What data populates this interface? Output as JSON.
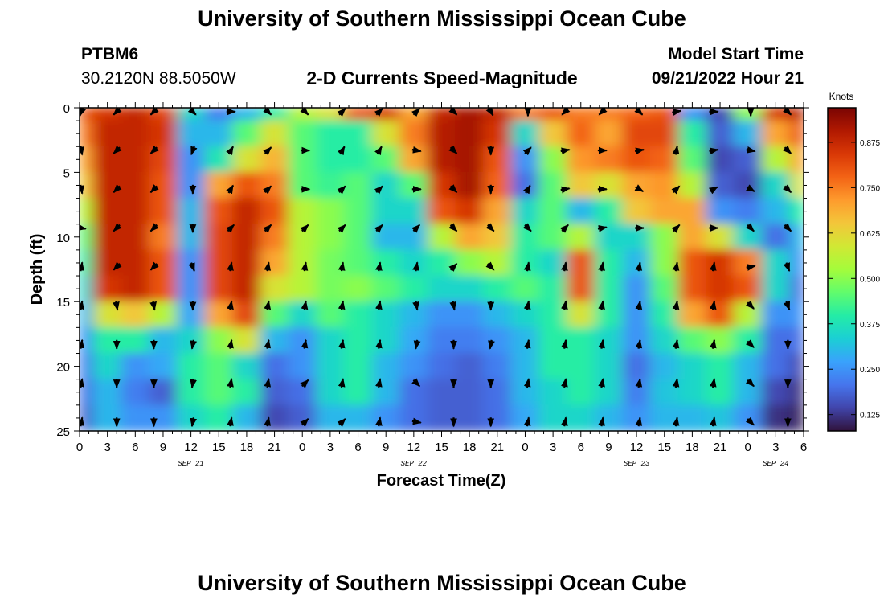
{
  "header": {
    "title": "University of Southern Mississippi Ocean Cube",
    "station_id": "PTBM6",
    "station_coords": "30.2120N  88.5050W",
    "plot_title": "2-D Currents Speed-Magnitude",
    "model_start_label": "Model Start Time",
    "model_start_value": "09/21/2022 Hour 21"
  },
  "footer": {
    "repeat_title": "University of Southern Mississippi Ocean Cube"
  },
  "chart_data": {
    "type": "heatmap",
    "title": "2-D Currents Speed-Magnitude",
    "xlabel": "Forecast Time(Z)",
    "ylabel": "Depth (ft)",
    "x_tick_labels": [
      "0",
      "3",
      "6",
      "9",
      "12",
      "15",
      "18",
      "21",
      "0",
      "3",
      "6",
      "9",
      "12",
      "15",
      "18",
      "21",
      "0",
      "3",
      "6",
      "9",
      "12",
      "15",
      "18",
      "21",
      "0",
      "3",
      "6"
    ],
    "date_labels": [
      {
        "label": "SEP 21",
        "tick_index": 4
      },
      {
        "label": "SEP 22",
        "tick_index": 12
      },
      {
        "label": "SEP 23",
        "tick_index": 20
      },
      {
        "label": "SEP 24",
        "tick_index": 25
      }
    ],
    "y_ticks": [
      0,
      5,
      10,
      15,
      20,
      25
    ],
    "ylim": [
      0,
      25
    ],
    "x_range_hours": [
      0,
      78
    ],
    "colorbar": {
      "unit_label": "Knots",
      "range": [
        0.08,
        0.97
      ],
      "ticks": [
        "0.125",
        "0.250",
        "0.375",
        "0.500",
        "0.625",
        "0.750",
        "0.875"
      ],
      "colors": [
        "#30123b",
        "#4145ab",
        "#4675ed",
        "#39a2fc",
        "#1bcfd4",
        "#24eca6",
        "#61fc6c",
        "#a4fc3b",
        "#d1e834",
        "#f3c63a",
        "#fe9b2d",
        "#f36315",
        "#d93806",
        "#b11901",
        "#7a0403"
      ]
    },
    "speed_grid_depths_ft": [
      0,
      2,
      4,
      6,
      8,
      10,
      12,
      14,
      16,
      18,
      20,
      22,
      24
    ],
    "speed_grid_hours": [
      0,
      3,
      6,
      9,
      12,
      15,
      18,
      21,
      24,
      27,
      30,
      33,
      36,
      39,
      42,
      45,
      48,
      51,
      54,
      57,
      60,
      63,
      66,
      69,
      72,
      75,
      78
    ],
    "speed_knots": [
      [
        0.8,
        0.85,
        0.88,
        0.82,
        0.35,
        0.22,
        0.3,
        0.4,
        0.55,
        0.6,
        0.8,
        0.85,
        0.7,
        0.88,
        0.92,
        0.88,
        0.75,
        0.8,
        0.75,
        0.75,
        0.78,
        0.8,
        0.25,
        0.15,
        0.5,
        0.85,
        0.9
      ],
      [
        0.75,
        0.88,
        0.88,
        0.85,
        0.3,
        0.3,
        0.45,
        0.6,
        0.45,
        0.4,
        0.4,
        0.6,
        0.75,
        0.9,
        0.92,
        0.85,
        0.35,
        0.65,
        0.78,
        0.7,
        0.82,
        0.82,
        0.4,
        0.18,
        0.3,
        0.7,
        0.8
      ],
      [
        0.7,
        0.88,
        0.88,
        0.82,
        0.25,
        0.38,
        0.6,
        0.68,
        0.45,
        0.4,
        0.4,
        0.45,
        0.7,
        0.9,
        0.92,
        0.8,
        0.25,
        0.5,
        0.72,
        0.75,
        0.8,
        0.78,
        0.45,
        0.15,
        0.18,
        0.55,
        0.7
      ],
      [
        0.65,
        0.88,
        0.88,
        0.8,
        0.25,
        0.7,
        0.8,
        0.75,
        0.45,
        0.42,
        0.45,
        0.35,
        0.45,
        0.85,
        0.92,
        0.78,
        0.2,
        0.45,
        0.65,
        0.6,
        0.7,
        0.72,
        0.55,
        0.18,
        0.15,
        0.35,
        0.6
      ],
      [
        0.55,
        0.88,
        0.88,
        0.8,
        0.3,
        0.8,
        0.88,
        0.8,
        0.55,
        0.5,
        0.45,
        0.35,
        0.35,
        0.8,
        0.85,
        0.7,
        0.35,
        0.45,
        0.3,
        0.4,
        0.65,
        0.7,
        0.7,
        0.25,
        0.22,
        0.3,
        0.4
      ],
      [
        0.45,
        0.88,
        0.88,
        0.75,
        0.3,
        0.82,
        0.88,
        0.75,
        0.55,
        0.5,
        0.45,
        0.3,
        0.3,
        0.55,
        0.7,
        0.65,
        0.4,
        0.45,
        0.55,
        0.35,
        0.35,
        0.5,
        0.7,
        0.6,
        0.35,
        0.2,
        0.3
      ],
      [
        0.4,
        0.88,
        0.88,
        0.8,
        0.25,
        0.82,
        0.88,
        0.7,
        0.55,
        0.48,
        0.45,
        0.4,
        0.35,
        0.4,
        0.5,
        0.55,
        0.4,
        0.35,
        0.8,
        0.4,
        0.3,
        0.5,
        0.8,
        0.85,
        0.75,
        0.35,
        0.25
      ],
      [
        0.35,
        0.85,
        0.88,
        0.8,
        0.25,
        0.82,
        0.88,
        0.6,
        0.55,
        0.48,
        0.5,
        0.45,
        0.4,
        0.35,
        0.35,
        0.4,
        0.45,
        0.4,
        0.8,
        0.4,
        0.25,
        0.45,
        0.8,
        0.85,
        0.8,
        0.35,
        0.2
      ],
      [
        0.3,
        0.6,
        0.65,
        0.55,
        0.28,
        0.7,
        0.82,
        0.45,
        0.35,
        0.45,
        0.4,
        0.35,
        0.3,
        0.25,
        0.25,
        0.3,
        0.35,
        0.4,
        0.6,
        0.4,
        0.25,
        0.4,
        0.7,
        0.8,
        0.55,
        0.25,
        0.25
      ],
      [
        0.25,
        0.4,
        0.4,
        0.3,
        0.35,
        0.5,
        0.6,
        0.3,
        0.25,
        0.35,
        0.4,
        0.35,
        0.28,
        0.22,
        0.22,
        0.25,
        0.3,
        0.4,
        0.4,
        0.35,
        0.25,
        0.35,
        0.45,
        0.5,
        0.4,
        0.2,
        0.2
      ],
      [
        0.22,
        0.35,
        0.25,
        0.28,
        0.4,
        0.45,
        0.35,
        0.2,
        0.25,
        0.35,
        0.4,
        0.3,
        0.25,
        0.2,
        0.18,
        0.22,
        0.3,
        0.4,
        0.4,
        0.35,
        0.2,
        0.3,
        0.35,
        0.4,
        0.3,
        0.2,
        0.15
      ],
      [
        0.2,
        0.3,
        0.22,
        0.18,
        0.4,
        0.45,
        0.4,
        0.18,
        0.2,
        0.35,
        0.4,
        0.3,
        0.2,
        0.18,
        0.18,
        0.2,
        0.3,
        0.35,
        0.4,
        0.35,
        0.22,
        0.32,
        0.35,
        0.4,
        0.3,
        0.15,
        0.12
      ],
      [
        0.18,
        0.3,
        0.25,
        0.25,
        0.35,
        0.4,
        0.3,
        0.15,
        0.18,
        0.3,
        0.3,
        0.25,
        0.2,
        0.18,
        0.18,
        0.2,
        0.28,
        0.35,
        0.35,
        0.3,
        0.25,
        0.3,
        0.3,
        0.32,
        0.25,
        0.12,
        0.1
      ]
    ],
    "arrow_rows_depth_ft": [
      0.3,
      3.3,
      6.3,
      9.3,
      12.3,
      15.3,
      18.3,
      21.3,
      24.3
    ],
    "arrow_cols_hour": [
      0.2,
      4,
      8,
      12.2,
      16.3,
      20.3,
      24.3,
      28.3,
      32.3,
      36.3,
      40.3,
      44.3,
      48.3,
      52.3,
      56.3,
      60.3,
      64.3,
      68.3,
      72.3,
      76.3
    ],
    "arrow_directions_deg": [
      [
        200,
        225,
        225,
        135,
        90,
        135,
        135,
        45,
        45,
        45,
        135,
        150,
        180,
        225,
        225,
        135,
        80,
        90,
        180,
        135
      ],
      [
        170,
        225,
        225,
        200,
        30,
        45,
        90,
        30,
        30,
        100,
        135,
        180,
        45,
        80,
        90,
        80,
        10,
        80,
        100,
        135
      ],
      [
        170,
        225,
        225,
        180,
        30,
        45,
        90,
        45,
        45,
        90,
        135,
        180,
        30,
        80,
        90,
        120,
        45,
        60,
        120,
        135
      ],
      [
        100,
        225,
        225,
        180,
        45,
        45,
        45,
        45,
        45,
        45,
        135,
        135,
        135,
        45,
        80,
        90,
        45,
        90,
        135,
        135
      ],
      [
        10,
        225,
        225,
        160,
        10,
        10,
        10,
        10,
        10,
        10,
        45,
        135,
        10,
        10,
        10,
        10,
        10,
        10,
        80,
        160
      ],
      [
        10,
        170,
        170,
        180,
        10,
        10,
        10,
        10,
        10,
        170,
        170,
        180,
        10,
        10,
        10,
        10,
        10,
        10,
        135,
        160
      ],
      [
        10,
        180,
        180,
        190,
        10,
        10,
        10,
        10,
        10,
        190,
        180,
        190,
        10,
        10,
        10,
        10,
        10,
        10,
        135,
        180
      ],
      [
        10,
        180,
        180,
        190,
        10,
        10,
        45,
        10,
        10,
        135,
        180,
        180,
        10,
        10,
        10,
        10,
        10,
        10,
        135,
        180
      ],
      [
        10,
        180,
        180,
        190,
        10,
        10,
        45,
        45,
        10,
        100,
        180,
        180,
        10,
        10,
        10,
        10,
        10,
        10,
        135,
        180
      ]
    ]
  }
}
